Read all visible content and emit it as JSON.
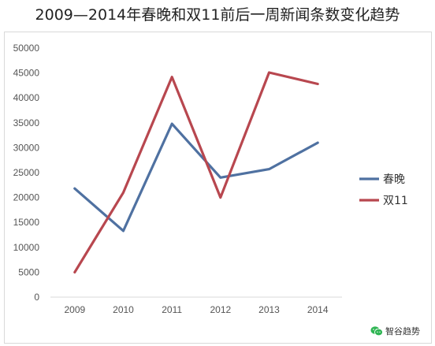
{
  "title": "2009—2014年春晚和双11前后一周新闻条数变化趋势",
  "watermark": {
    "text": "智谷趋势",
    "icon": "wechat-icon",
    "icon_color": "#2fb553"
  },
  "chart_data": {
    "type": "line",
    "title": "2009—2014年春晚和双11前后一周新闻条数变化趋势",
    "x": [
      "2009",
      "2010",
      "2011",
      "2012",
      "2013",
      "2014"
    ],
    "y_ticks": [
      "0",
      "5000",
      "10000",
      "15000",
      "20000",
      "25000",
      "30000",
      "35000",
      "40000",
      "45000",
      "50000"
    ],
    "ylim": [
      0,
      50000
    ],
    "grid": false,
    "legend_position": "right",
    "series": [
      {
        "name": "春晚",
        "color": "#4f71a1",
        "values": [
          21800,
          13300,
          34800,
          24000,
          25700,
          31000
        ]
      },
      {
        "name": "双11",
        "color": "#b8474f",
        "values": [
          5000,
          21000,
          44200,
          20000,
          45100,
          42800
        ]
      }
    ]
  }
}
